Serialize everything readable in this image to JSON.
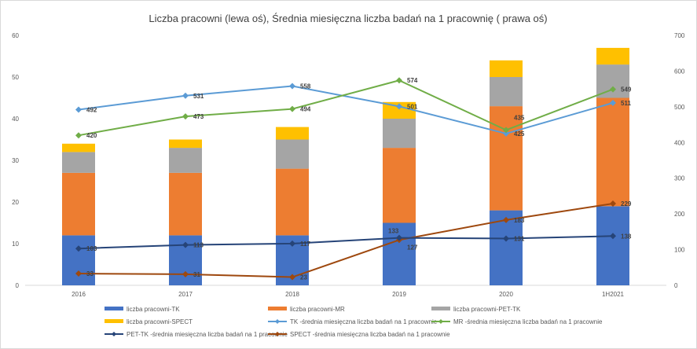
{
  "chart_data": {
    "type": "bar",
    "title": "Liczba pracowni (lewa oś), Średnia miesięczna liczba badań na 1 pracownię ( prawa oś)",
    "categories": [
      "2016",
      "2017",
      "2018",
      "2019",
      "2020",
      "1H2021"
    ],
    "left_axis": {
      "min": 0,
      "max": 60,
      "ticks": [
        0,
        10,
        20,
        30,
        40,
        50,
        60
      ]
    },
    "right_axis": {
      "min": 0,
      "max": 700,
      "ticks": [
        0,
        100,
        200,
        300,
        400,
        500,
        600,
        700
      ]
    },
    "grid": false,
    "legend_position": "bottom",
    "bar_series": [
      {
        "name": "liczba pracowni-TK",
        "color": "#4472C4",
        "values": [
          12,
          12,
          12,
          15,
          18,
          19
        ]
      },
      {
        "name": "liczba pracowni-MR",
        "color": "#ED7D31",
        "values": [
          15,
          15,
          16,
          18,
          25,
          26
        ]
      },
      {
        "name": "liczba pracowni-PET-TK",
        "color": "#A5A5A5",
        "values": [
          5,
          6,
          7,
          7,
          7,
          8
        ]
      },
      {
        "name": "liczba pracowni-SPECT",
        "color": "#FFC000",
        "values": [
          2,
          2,
          3,
          4,
          4,
          4
        ]
      }
    ],
    "line_series": [
      {
        "name": "TK -średnia miesięczna liczba badań na 1 pracownie",
        "color": "#5B9BD5",
        "values": [
          492,
          531,
          558,
          501,
          425,
          511
        ],
        "labels": [
          "492",
          "531",
          "558",
          "501",
          "425",
          "511"
        ]
      },
      {
        "name": "MR -średnia miesięczna liczba badań na 1 pracownie",
        "color": "#70AD47",
        "values": [
          420,
          473,
          494,
          574,
          435,
          549
        ],
        "labels": [
          "420",
          "473",
          "494",
          "574",
          "435",
          "549"
        ]
      },
      {
        "name": "PET-TK -średnia miesięczna liczba badań na 1 pracownie",
        "color": "#264478",
        "values": [
          103,
          113,
          117,
          133,
          131,
          138
        ],
        "labels": [
          "103",
          "113",
          "117",
          "133",
          "131",
          "138"
        ]
      },
      {
        "name": "SPECT -średnia miesięczna liczba badań na 1 pracownie",
        "color": "#9E480E",
        "values": [
          33,
          31,
          23,
          127,
          183,
          229
        ],
        "labels": [
          "33",
          "31",
          "23",
          "127",
          "183",
          "229"
        ]
      }
    ]
  }
}
